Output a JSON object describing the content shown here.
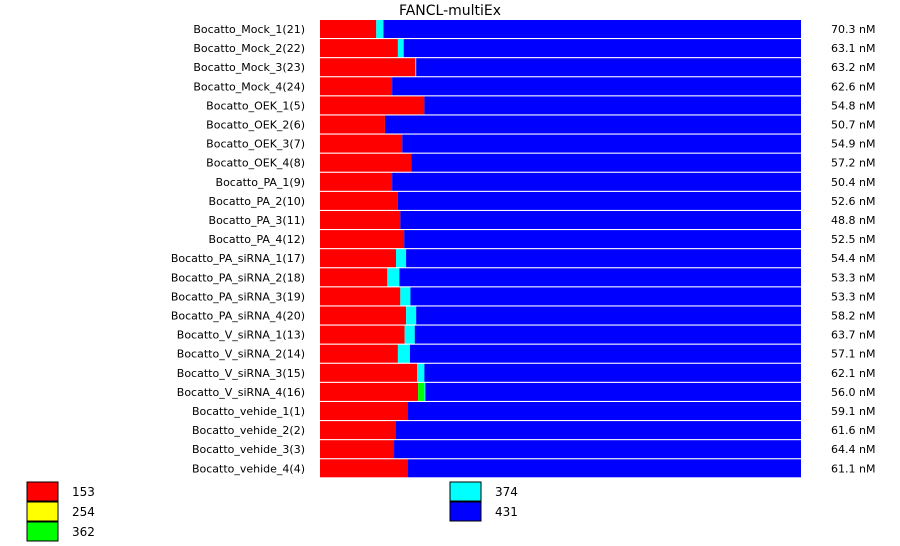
{
  "chart_data": {
    "type": "bar",
    "stacked": true,
    "normalized": true,
    "orientation": "horizontal",
    "title": "FANCL-multiEx",
    "colors": {
      "153": "#ff0000",
      "254": "#ffff00",
      "362": "#00ff00",
      "374": "#00ffff",
      "431": "#0000ff"
    },
    "series": [
      {
        "name": "153"
      },
      {
        "name": "254"
      },
      {
        "name": "362"
      },
      {
        "name": "374"
      },
      {
        "name": "431"
      }
    ],
    "rows": [
      {
        "label": "Bocatto_Mock_1(21)",
        "value": "70.3 nM",
        "fractions": [
          0.117,
          0,
          0,
          0.015,
          0.868
        ]
      },
      {
        "label": "Bocatto_Mock_2(22)",
        "value": "63.1 nM",
        "fractions": [
          0.162,
          0,
          0,
          0.012,
          0.826
        ]
      },
      {
        "label": "Bocatto_Mock_3(23)",
        "value": "63.2 nM",
        "fractions": [
          0.198,
          0,
          0,
          0.002,
          0.8
        ]
      },
      {
        "label": "Bocatto_Mock_4(24)",
        "value": "62.6 nM",
        "fractions": [
          0.15,
          0,
          0,
          0,
          0.85
        ]
      },
      {
        "label": "Bocatto_OEK_1(5)",
        "value": "54.8 nM",
        "fractions": [
          0.217,
          0,
          0,
          0,
          0.783
        ]
      },
      {
        "label": "Bocatto_OEK_2(6)",
        "value": "50.7 nM",
        "fractions": [
          0.135,
          0,
          0,
          0,
          0.865
        ]
      },
      {
        "label": "Bocatto_OEK_3(7)",
        "value": "54.9 nM",
        "fractions": [
          0.171,
          0,
          0,
          0,
          0.829
        ]
      },
      {
        "label": "Bocatto_OEK_4(8)",
        "value": "57.2 nM",
        "fractions": [
          0.19,
          0,
          0,
          0,
          0.81
        ]
      },
      {
        "label": "Bocatto_PA_1(9)",
        "value": "50.4 nM",
        "fractions": [
          0.15,
          0,
          0,
          0,
          0.85
        ]
      },
      {
        "label": "Bocatto_PA_2(10)",
        "value": "52.6 nM",
        "fractions": [
          0.162,
          0,
          0,
          0,
          0.838
        ]
      },
      {
        "label": "Bocatto_PA_3(11)",
        "value": "48.8 nM",
        "fractions": [
          0.167,
          0,
          0,
          0,
          0.833
        ]
      },
      {
        "label": "Bocatto_PA_4(12)",
        "value": "52.5 nM",
        "fractions": [
          0.175,
          0,
          0,
          0,
          0.825
        ]
      },
      {
        "label": "Bocatto_PA_siRNA_1(17)",
        "value": "54.4 nM",
        "fractions": [
          0.158,
          0,
          0,
          0.021,
          0.821
        ]
      },
      {
        "label": "Bocatto_PA_siRNA_2(18)",
        "value": "53.3 nM",
        "fractions": [
          0.14,
          0,
          0,
          0.025,
          0.835
        ]
      },
      {
        "label": "Bocatto_PA_siRNA_3(19)",
        "value": "53.3 nM",
        "fractions": [
          0.167,
          0,
          0,
          0.021,
          0.812
        ]
      },
      {
        "label": "Bocatto_PA_siRNA_4(20)",
        "value": "58.2 nM",
        "fractions": [
          0.179,
          0,
          0,
          0.021,
          0.8
        ]
      },
      {
        "label": "Bocatto_V_siRNA_1(13)",
        "value": "63.7 nM",
        "fractions": [
          0.176,
          0,
          0,
          0.021,
          0.803
        ]
      },
      {
        "label": "Bocatto_V_siRNA_2(14)",
        "value": "57.1 nM",
        "fractions": [
          0.162,
          0,
          0,
          0.025,
          0.813
        ]
      },
      {
        "label": "Bocatto_V_siRNA_3(15)",
        "value": "62.1 nM",
        "fractions": [
          0.202,
          0,
          0,
          0.015,
          0.783
        ]
      },
      {
        "label": "Bocatto_V_siRNA_4(16)",
        "value": "56.0 nM",
        "fractions": [
          0.204,
          0,
          0.013,
          0.002,
          0.781
        ]
      },
      {
        "label": "Bocatto_vehide_1(1)",
        "value": "59.1 nM",
        "fractions": [
          0.183,
          0,
          0,
          0,
          0.817
        ]
      },
      {
        "label": "Bocatto_vehide_2(2)",
        "value": "61.6 nM",
        "fractions": [
          0.158,
          0,
          0,
          0,
          0.842
        ]
      },
      {
        "label": "Bocatto_vehide_3(3)",
        "value": "64.4 nM",
        "fractions": [
          0.154,
          0,
          0,
          0,
          0.846
        ]
      },
      {
        "label": "Bocatto_vehide_4(4)",
        "value": "61.1 nM",
        "fractions": [
          0.183,
          0,
          0,
          0,
          0.817
        ]
      }
    ],
    "legend": [
      {
        "label": "153",
        "color": "#ff0000"
      },
      {
        "label": "254",
        "color": "#ffff00"
      },
      {
        "label": "362",
        "color": "#00ff00"
      },
      {
        "label": "374",
        "color": "#00ffff"
      },
      {
        "label": "431",
        "color": "#0000ff"
      }
    ]
  }
}
